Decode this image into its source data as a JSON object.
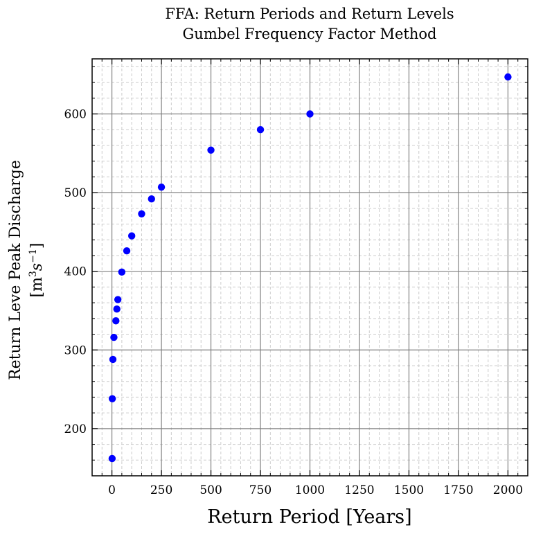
{
  "chart_data": {
    "type": "scatter",
    "title": "FFA: Return Periods and Return Levels",
    "subtitle": "Gumbel Frequency Factor Method",
    "xlabel": "Return Period [Years]",
    "ylabel_line1": "Return Leve Peak Discharge",
    "ylabel_line2_base": "[m",
    "ylabel_line2_sup1": "3",
    "ylabel_line2_mid": "s",
    "ylabel_line2_sup2": "−1",
    "ylabel_line2_end": "]",
    "xlim": [
      -100,
      2100
    ],
    "ylim": [
      140,
      670
    ],
    "xticks": [
      0,
      250,
      500,
      750,
      1000,
      1250,
      1500,
      1750,
      2000
    ],
    "yticks": [
      200,
      300,
      400,
      500,
      600
    ],
    "xtick_labels": [
      "0",
      "250",
      "500",
      "750",
      "1000",
      "1250",
      "1500",
      "1750",
      "2000"
    ],
    "ytick_labels": [
      "200",
      "300",
      "400",
      "500",
      "600"
    ],
    "grid": true,
    "marker_color": "#0000ff",
    "series": [
      {
        "points": [
          [
            1.0,
            162
          ],
          [
            2,
            238
          ],
          [
            5,
            288
          ],
          [
            10,
            316
          ],
          [
            20,
            337
          ],
          [
            25,
            352
          ],
          [
            30,
            364
          ],
          [
            50,
            399
          ],
          [
            75,
            426
          ],
          [
            100,
            445
          ],
          [
            150,
            473
          ],
          [
            200,
            492
          ],
          [
            250,
            507
          ],
          [
            500,
            554
          ],
          [
            750,
            580
          ],
          [
            1000,
            600
          ],
          [
            2000,
            647
          ]
        ]
      }
    ]
  }
}
